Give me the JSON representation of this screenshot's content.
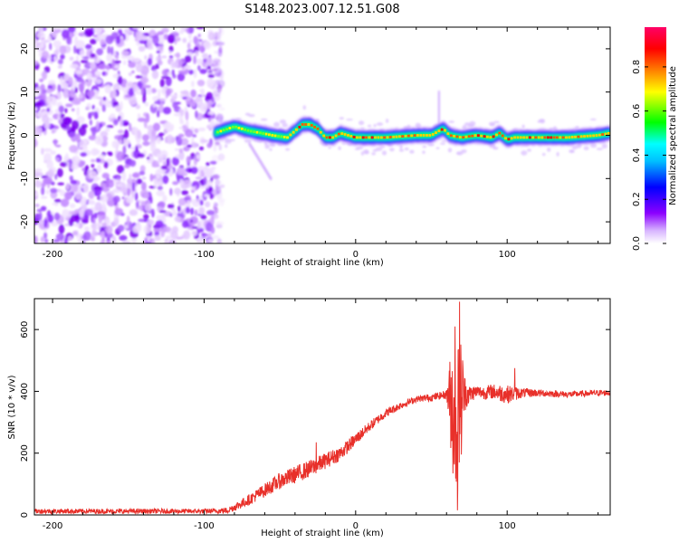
{
  "figure": {
    "title": "S148.2023.007.12.51.G08"
  },
  "chart_data": [
    {
      "type": "heatmap",
      "title": "S148.2023.007.12.51.G08",
      "xlabel": "Height of straight line (km)",
      "ylabel": "Frequency (Hz)",
      "xlim": [
        -212,
        168
      ],
      "ylim": [
        -25,
        25
      ],
      "xticks": [
        -200,
        -100,
        0,
        100
      ],
      "yticks": [
        -20,
        -10,
        0,
        10,
        20
      ],
      "noise_region_x": [
        -212,
        -90
      ],
      "signal_onset_x": -93,
      "ridge": {
        "name": "",
        "x": [
          -93,
          -80,
          -70,
          -62,
          -55,
          -45,
          -40,
          -35,
          -30,
          -25,
          -20,
          -15,
          -10,
          0,
          10,
          20,
          40,
          50,
          55,
          58,
          62,
          70,
          80,
          90,
          95,
          100,
          105,
          120,
          140,
          160,
          168
        ],
        "freq": [
          0.5,
          2,
          1,
          0.5,
          0,
          -0.5,
          1,
          2.5,
          2.5,
          1.5,
          -0.5,
          -0.5,
          0.5,
          -0.5,
          -0.5,
          -0.5,
          0,
          0,
          1,
          1.5,
          0,
          -0.5,
          0,
          -0.5,
          0.5,
          -1,
          -0.5,
          -0.5,
          -0.5,
          0,
          0.5
        ]
      },
      "spike": {
        "x": 55,
        "freq_range": [
          0,
          10
        ]
      },
      "colorbar": {
        "label": "Normalized spectral amplitude",
        "ticks": [
          0.0,
          0.2,
          0.4,
          0.6,
          0.8
        ],
        "range": [
          0,
          0.98
        ],
        "colors": [
          "#ffffff",
          "#8b00ff",
          "#0000ff",
          "#00ffff",
          "#00ff00",
          "#ffff00",
          "#ff7f00",
          "#ff0000",
          "#ff0080"
        ]
      }
    },
    {
      "type": "line",
      "xlabel": "Height of straight line (km)",
      "ylabel": "SNR (10 * v/v)",
      "xlim": [
        -212,
        168
      ],
      "ylim": [
        0,
        700
      ],
      "xticks": [
        -200,
        -100,
        0,
        100
      ],
      "yticks": [
        0,
        200,
        400,
        600
      ],
      "color": "#e8302a",
      "series": [
        {
          "x": [
            -212,
            -150,
            -100,
            -85,
            -78,
            -70,
            -60,
            -50,
            -40,
            -30,
            -20,
            -10,
            0,
            10,
            20,
            30,
            40,
            50,
            55,
            60,
            62,
            64,
            66,
            68,
            70,
            72,
            75,
            80,
            85,
            90,
            95,
            100,
            110,
            120,
            140,
            160,
            168
          ],
          "y": [
            12,
            12,
            12,
            14,
            30,
            50,
            80,
            110,
            130,
            150,
            175,
            200,
            245,
            290,
            330,
            355,
            375,
            380,
            385,
            390,
            380,
            350,
            300,
            330,
            380,
            395,
            390,
            400,
            395,
            400,
            395,
            390,
            395,
            395,
            390,
            395,
            395
          ],
          "noise_amp": [
            8,
            8,
            8,
            10,
            14,
            18,
            22,
            26,
            28,
            28,
            26,
            24,
            20,
            16,
            14,
            12,
            10,
            12,
            12,
            14,
            120,
            220,
            250,
            240,
            200,
            60,
            30,
            20,
            22,
            24,
            28,
            30,
            16,
            12,
            10,
            10,
            10
          ],
          "peaks": [
            {
              "x": 68.5,
              "y": 690
            },
            {
              "x": 67.2,
              "y": 15
            },
            {
              "x": 65.5,
              "y": 610
            },
            {
              "x": 70.5,
              "y": 500
            },
            {
              "x": -26,
              "y": 235
            },
            {
              "x": 105,
              "y": 475
            }
          ]
        }
      ]
    }
  ]
}
